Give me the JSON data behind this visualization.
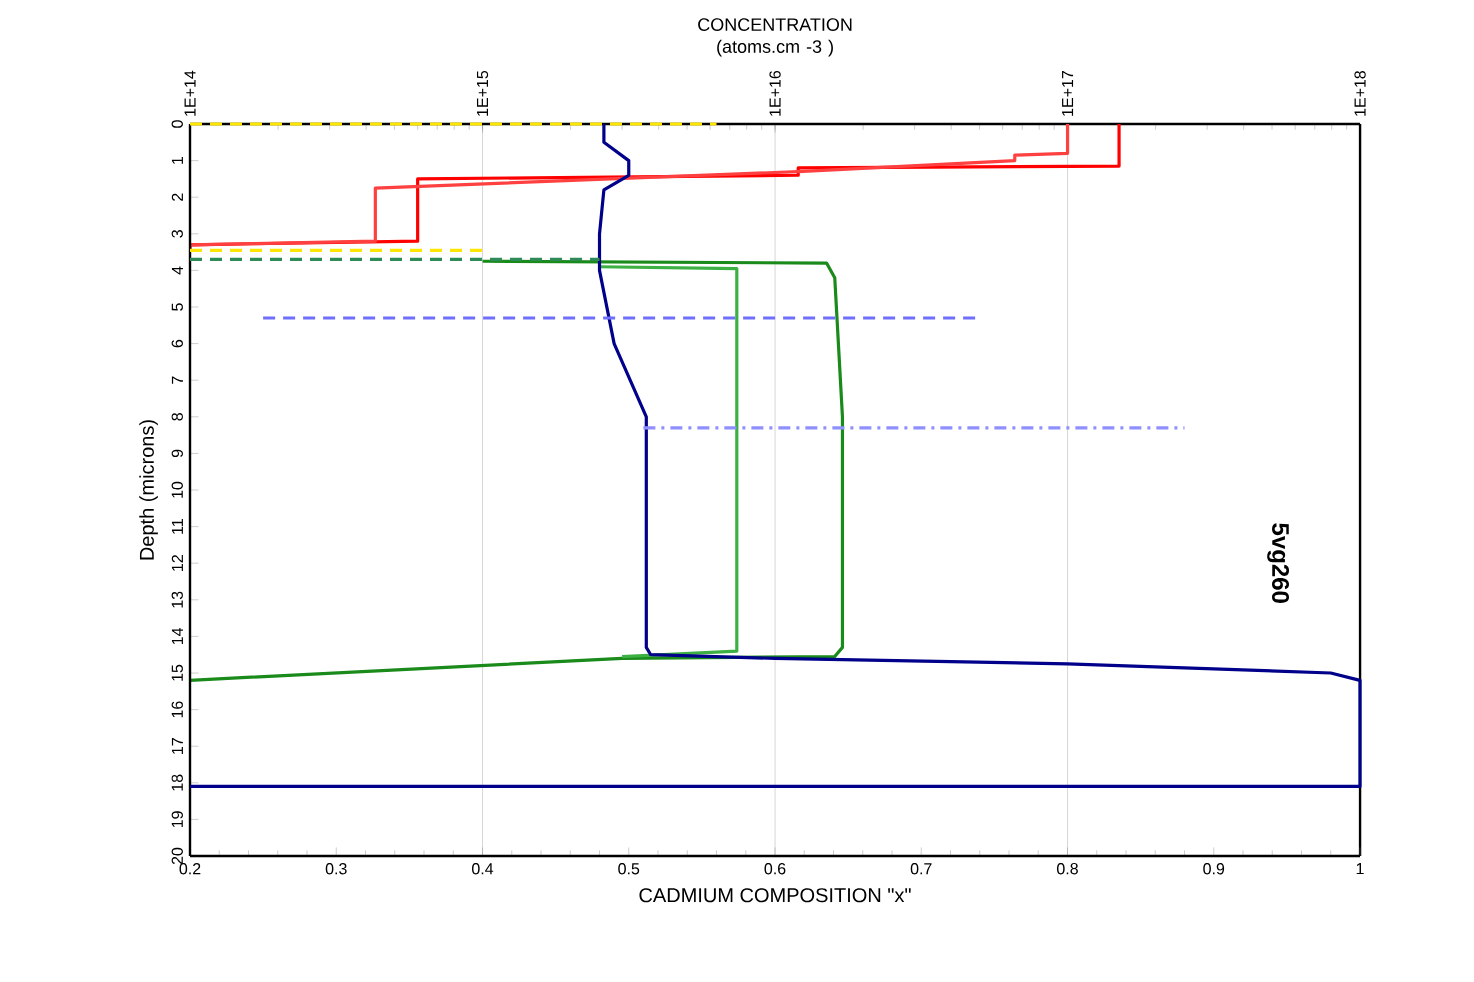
{
  "chart_data": {
    "type": "line",
    "x2label": "CONCENTRATION (atoms.cm -3 )",
    "xlabel": "CADMIUM  COMPOSITION \"x\"",
    "ylabel": "Depth (microns)",
    "annotations": [
      "5vg260"
    ],
    "xlim": [
      0.2,
      1
    ],
    "xticks": [
      0.2,
      0.3,
      0.4,
      0.5,
      0.6,
      0.7,
      0.8,
      0.9,
      1
    ],
    "x2lim": [
      100000000000000.0,
      1e+18
    ],
    "x2ticks": [
      {
        "value": 100000000000000.0,
        "label": "1E+14"
      },
      {
        "value": 1000000000000000.0,
        "label": "1E+15"
      },
      {
        "value": 1e+16,
        "label": "1E+16"
      },
      {
        "value": 1e+17,
        "label": "1E+17"
      },
      {
        "value": 1e+18,
        "label": "1E+18"
      }
    ],
    "log": "x2",
    "grid": "x2",
    "ylim": [
      20,
      0
    ],
    "yticks": [
      0,
      1,
      2,
      3,
      4,
      5,
      6,
      7,
      8,
      9,
      10,
      11,
      12,
      13,
      14,
      15,
      16,
      17,
      18,
      19,
      20
    ],
    "series": [
      {
        "color": "#00008b",
        "x": [
          0.483,
          0.483,
          0.5,
          0.5,
          0.483,
          0.48,
          0.48,
          0.49,
          0.512,
          0.512,
          0.515,
          0.6,
          0.8,
          0.98,
          1.0,
          1.0,
          0.2
        ],
        "values": [
          0,
          0.5,
          1.0,
          1.4,
          1.8,
          3.0,
          4.0,
          6,
          8,
          14.3,
          14.5,
          14.6,
          14.75,
          15.0,
          15.2,
          18.1,
          18.1
        ]
      },
      {
        "color": "#ff0000",
        "axis": "x2",
        "x": [
          1.5e+17,
          1.5e+17,
          1.2e+16,
          1.2e+16,
          600000000000000.0,
          600000000000000.0,
          100000000000000.0,
          100000000000000.0
        ],
        "values": [
          0,
          1.15,
          1.2,
          1.4,
          1.5,
          3.2,
          3.3,
          3.5
        ]
      },
      {
        "color": "#ff4040",
        "axis": "x2",
        "x": [
          1e+17,
          1e+17,
          6.6e+16,
          6.6e+16,
          1.2e+16,
          430000000000000.0,
          430000000000000.0,
          100000000000000.0
        ],
        "values": [
          0,
          0.8,
          0.85,
          1.0,
          1.3,
          1.75,
          3.2,
          3.3
        ]
      },
      {
        "color": "#1a8a1a",
        "axis": "x2",
        "x": [
          1000000000000000.0,
          1.5e+16,
          1.6e+16,
          1.7e+16,
          1.7e+16,
          1.6e+16,
          3000000000000000.0,
          100000000000000.0
        ],
        "values": [
          3.75,
          3.8,
          4.2,
          8,
          14.3,
          14.55,
          14.6,
          15.2
        ]
      },
      {
        "color": "#3cb043",
        "axis": "x2",
        "x": [
          2500000000000000.0,
          7400000000000000.0,
          7400000000000000.0,
          7400000000000000.0,
          3000000000000000.0
        ],
        "values": [
          3.9,
          3.95,
          4.2,
          14.4,
          14.55
        ]
      },
      {
        "color": "#ffe600",
        "line_style": "dashed",
        "x": [
          0.2,
          0.56
        ],
        "values": [
          0,
          0
        ]
      },
      {
        "color": "#ffe600",
        "line_style": "dashed",
        "x": [
          0.2,
          0.4
        ],
        "values": [
          3.45,
          3.45
        ]
      },
      {
        "color": "#2e8b57",
        "line_style": "dashed",
        "x": [
          0.2,
          0.48
        ],
        "values": [
          3.7,
          3.7
        ]
      },
      {
        "color": "#6f6fff",
        "line_style": "dashed",
        "x": [
          0.25,
          0.74
        ],
        "values": [
          5.3,
          5.3
        ]
      },
      {
        "color": "#8f8fff",
        "line_style": "dashdot",
        "x": [
          0.51,
          0.88
        ],
        "values": [
          8.3,
          8.3
        ]
      }
    ]
  }
}
